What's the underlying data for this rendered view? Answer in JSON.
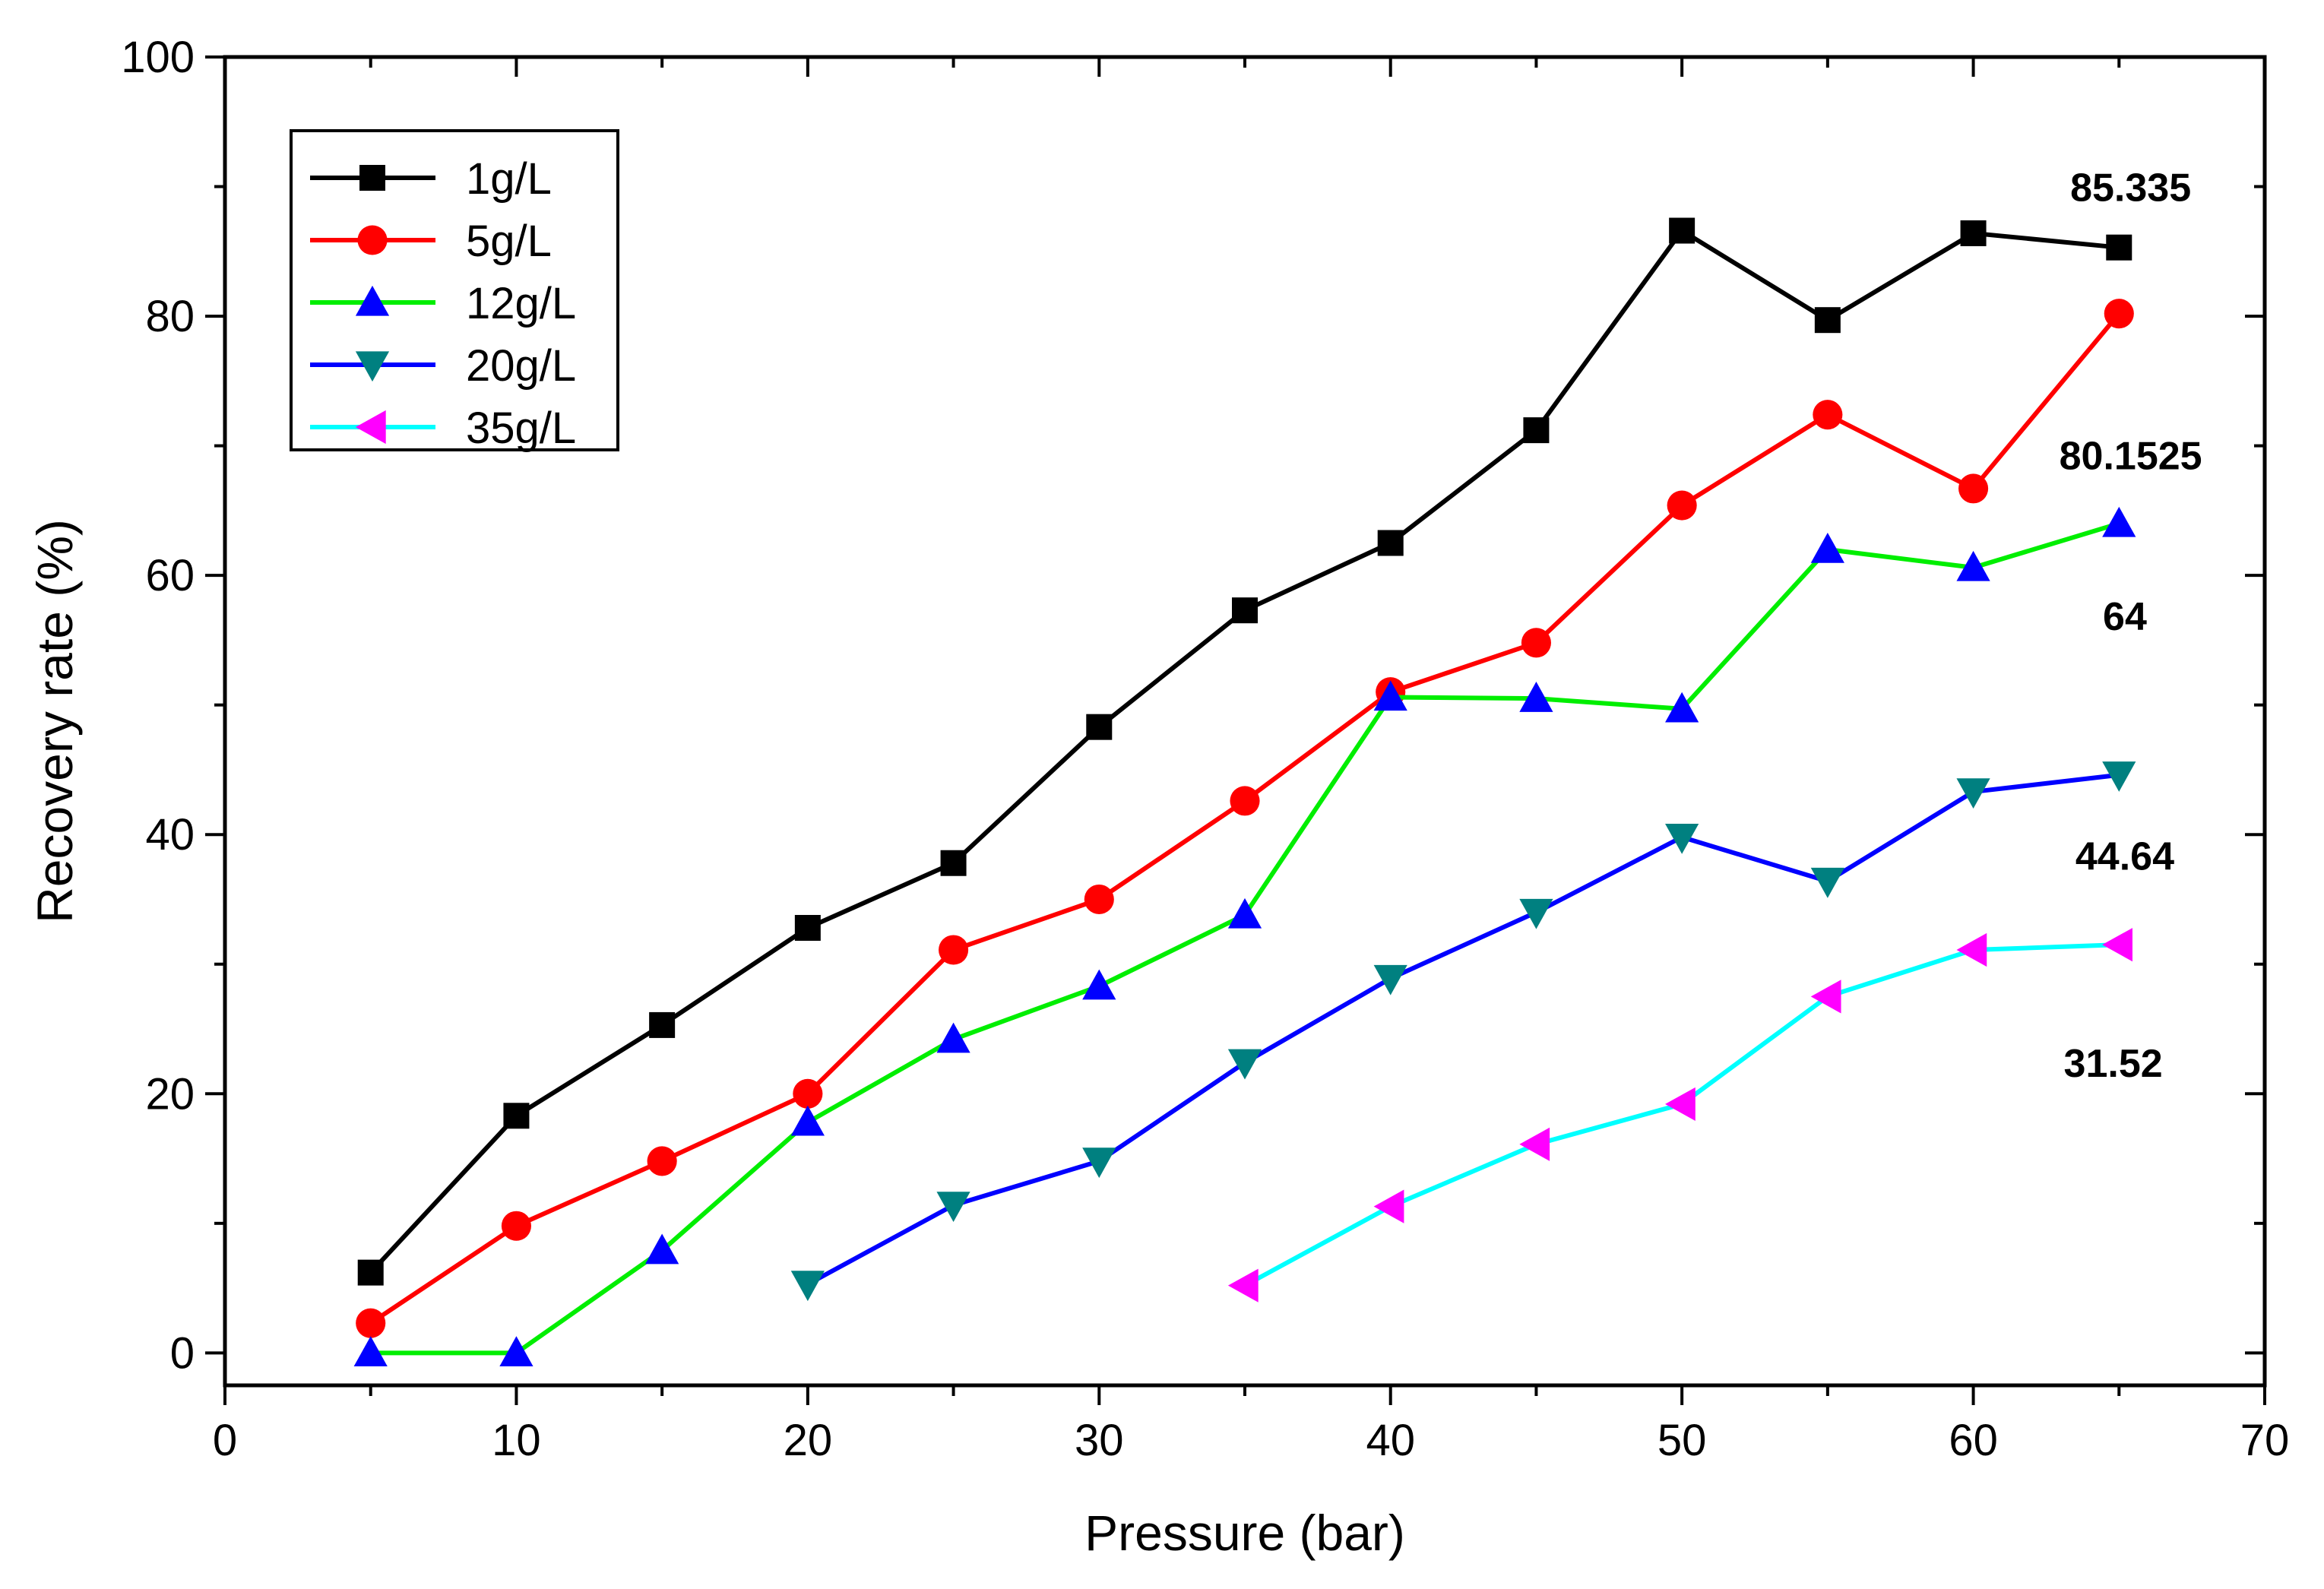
{
  "chart_data": {
    "type": "line",
    "title": "",
    "xlabel": "Pressure (bar)",
    "ylabel": "Recovery rate (%)",
    "xlim": [
      0,
      70
    ],
    "ylim": [
      -2.5,
      100
    ],
    "xticks": [
      0,
      10,
      20,
      30,
      40,
      50,
      60,
      70
    ],
    "yticks": [
      0,
      20,
      40,
      60,
      80,
      100
    ],
    "xtick_labels": [
      "0",
      "10",
      "20",
      "30",
      "40",
      "50",
      "60",
      "70"
    ],
    "ytick_labels": [
      "0",
      "20",
      "40",
      "60",
      "80",
      "100"
    ],
    "grid": false,
    "legend_position": "top-left",
    "series": [
      {
        "name": "1g/L",
        "color": "#000000",
        "marker": "square",
        "x": [
          5,
          10,
          15,
          20,
          25,
          30,
          35,
          40,
          45,
          50,
          55,
          60,
          65
        ],
        "values": [
          6.2,
          18.3,
          25.3,
          32.8,
          37.8,
          48.3,
          57.3,
          62.5,
          71.2,
          86.6,
          79.7,
          86.4,
          85.3
        ]
      },
      {
        "name": "5g/L",
        "color": "#ff0000",
        "marker": "circle",
        "x": [
          5,
          10,
          15,
          20,
          25,
          30,
          35,
          40,
          45,
          50,
          55,
          60,
          65
        ],
        "values": [
          2.3,
          9.8,
          14.8,
          20.0,
          31.1,
          35.0,
          42.6,
          51.0,
          54.8,
          65.4,
          72.4,
          66.7,
          80.2
        ]
      },
      {
        "name": "12g/L",
        "color": "#00ee00",
        "marker": "triangle-up",
        "x": [
          5,
          10,
          15,
          20,
          25,
          30,
          35,
          40,
          45,
          50,
          55,
          60,
          65
        ],
        "values": [
          0,
          0,
          7.9,
          17.8,
          24.2,
          28.3,
          33.8,
          50.6,
          50.5,
          49.7,
          62.0,
          60.6,
          64.0
        ]
      },
      {
        "name": "20g/L",
        "color": "#0000ff",
        "marker": "triangle-down",
        "marker_color": "#008080",
        "x": [
          20,
          25,
          30,
          35,
          40,
          45,
          50,
          55,
          60,
          65
        ],
        "values": [
          5.3,
          11.4,
          14.8,
          22.4,
          28.9,
          34.0,
          39.8,
          36.4,
          43.3,
          44.6
        ]
      },
      {
        "name": "35g/L",
        "color": "#00ffff",
        "marker": "triangle-left",
        "marker_color": "#ff00ff",
        "x": [
          35,
          40,
          45,
          50,
          55,
          60,
          65
        ],
        "values": [
          5.2,
          11.3,
          16.1,
          19.2,
          27.5,
          31.1,
          31.5
        ]
      }
    ],
    "annotations": [
      {
        "text": "85.335",
        "x": 65.4,
        "y": 88.9
      },
      {
        "text": "80.1525",
        "x": 65.4,
        "y": 68.2
      },
      {
        "text": "64",
        "x": 65.2,
        "y": 55.8
      },
      {
        "text": "44.64",
        "x": 65.2,
        "y": 37.3
      },
      {
        "text": "31.52",
        "x": 64.8,
        "y": 21.3
      }
    ]
  }
}
